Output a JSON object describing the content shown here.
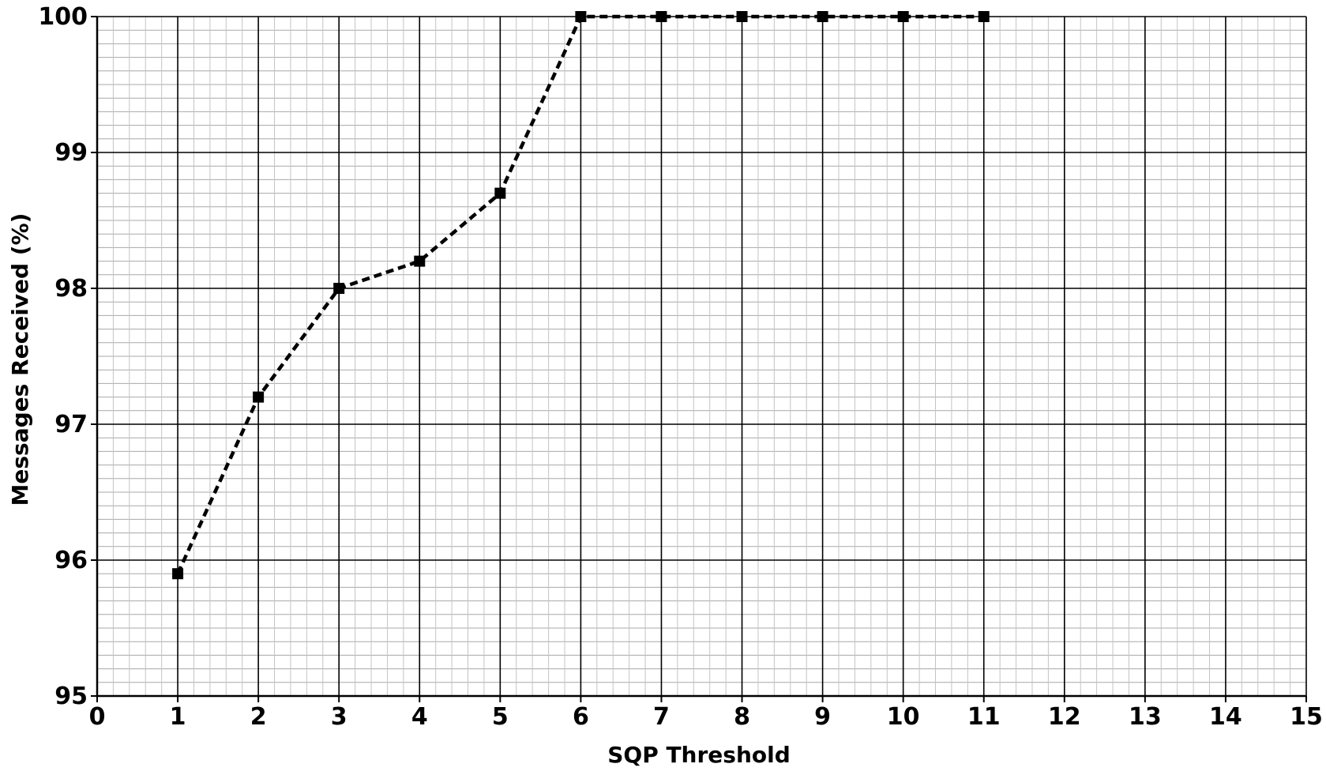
{
  "chart_data": {
    "type": "line",
    "xlabel": "SQP  Threshold",
    "ylabel": "Messages Received (%)",
    "xlim": [
      0,
      15
    ],
    "ylim": [
      95,
      100
    ],
    "x_ticks": [
      "0",
      "1",
      "2",
      "3",
      "4",
      "5",
      "6",
      "7",
      "8",
      "9",
      "10",
      "11",
      "12",
      "13",
      "14",
      "15"
    ],
    "y_ticks": [
      "95",
      "96",
      "97",
      "98",
      "99",
      "100"
    ],
    "grid": "major and minor",
    "series": [
      {
        "x": [
          1,
          2,
          3,
          4,
          5,
          6,
          7,
          8,
          9,
          10,
          11
        ],
        "values": [
          95.9,
          97.2,
          98.0,
          98.2,
          98.7,
          100.0,
          100.0,
          100.0,
          100.0,
          100.0,
          100.0
        ],
        "line_style": "dashed",
        "marker": "square",
        "color": "#000000"
      }
    ]
  }
}
